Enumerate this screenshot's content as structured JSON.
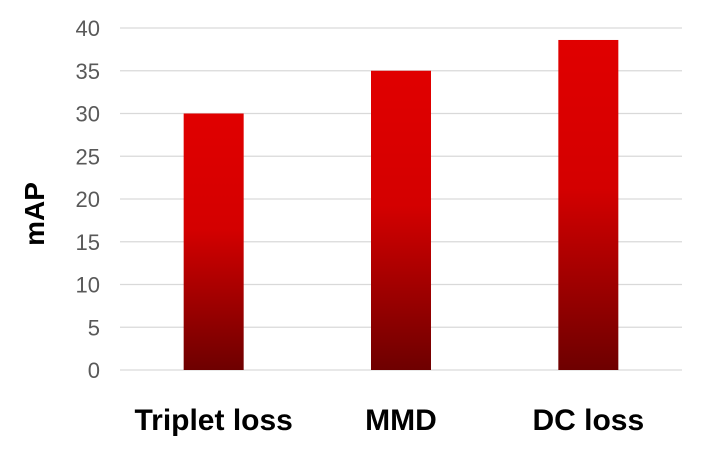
{
  "chart_data": {
    "type": "bar",
    "title": "",
    "xlabel": "",
    "ylabel": "mAP",
    "categories": [
      "Triplet loss",
      "MMD",
      "DC loss"
    ],
    "values": [
      30,
      35,
      38.6
    ],
    "ylim": [
      0,
      40
    ],
    "yticks": [
      0,
      5,
      10,
      15,
      20,
      25,
      30,
      35,
      40
    ],
    "grid": true,
    "legend": "none",
    "bar_color_top": "#e00000",
    "bar_color_bottom": "#6e0000"
  }
}
